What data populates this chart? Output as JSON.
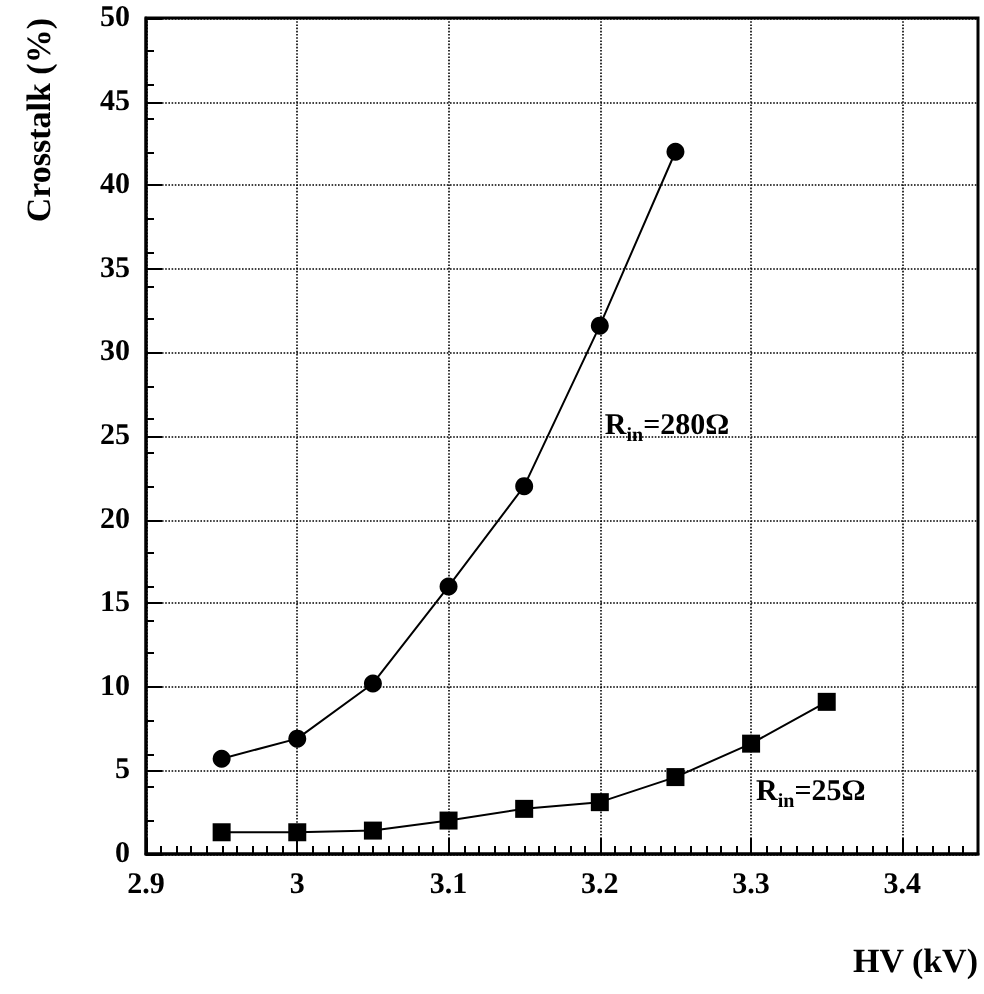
{
  "chart_data": {
    "type": "line",
    "xlabel": "HV (kV)",
    "ylabel": "Crosstalk (%)",
    "xlim": [
      2.9,
      3.45
    ],
    "xticks": [
      2.9,
      3,
      3.1,
      3.2,
      3.3,
      3.4
    ],
    "ylim": [
      0,
      50
    ],
    "yticks": [
      0,
      5,
      10,
      15,
      20,
      25,
      30,
      35,
      40,
      45,
      50
    ],
    "grid": true,
    "line_style": "solid",
    "series": [
      {
        "name": "R$_{in}$=280Ω",
        "color": "#000000",
        "marker": "circle",
        "x": [
          2.95,
          3,
          3.05,
          3.1,
          3.15,
          3.2,
          3.25
        ],
        "values": [
          5.7,
          6.9,
          10.2,
          16,
          22,
          31.6,
          42
        ]
      },
      {
        "name": "R$_{in}$=25Ω",
        "color": "#000000",
        "marker": "square",
        "x": [
          2.95,
          3,
          3.05,
          3.1,
          3.15,
          3.2,
          3.25,
          3.3,
          3.35
        ],
        "values": [
          1.3,
          1.3,
          1.4,
          2.0,
          2.7,
          3.1,
          4.6,
          6.6,
          9.1
        ]
      }
    ]
  }
}
